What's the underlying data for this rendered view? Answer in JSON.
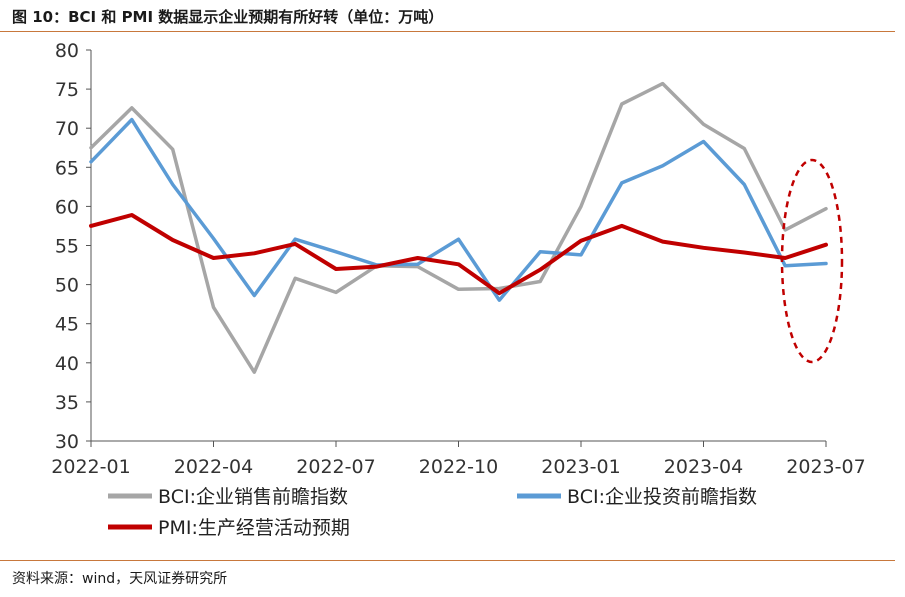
{
  "title": "图 10：BCI 和 PMI 数据显示企业预期有所好转（单位：万吨）",
  "source": "资料来源：wind，天风证券研究所",
  "chart_data": {
    "type": "line",
    "x": [
      "2022-01",
      "2022-02",
      "2022-03",
      "2022-04",
      "2022-05",
      "2022-06",
      "2022-07",
      "2022-08",
      "2022-09",
      "2022-10",
      "2022-11",
      "2022-12",
      "2023-01",
      "2023-02",
      "2023-03",
      "2023-04",
      "2023-05",
      "2023-06",
      "2023-07"
    ],
    "x_tick_labels": [
      "2022-01",
      "2022-04",
      "2022-07",
      "2022-10",
      "2023-01",
      "2023-04",
      "2023-07"
    ],
    "y_ticks": [
      30,
      35,
      40,
      45,
      50,
      55,
      60,
      65,
      70,
      75,
      80
    ],
    "ylim": [
      30,
      80
    ],
    "grid": false,
    "legend_placement": "bottom",
    "series": [
      {
        "name": "BCI:企业销售前瞻指数",
        "color": "#a6a6a6",
        "values": [
          67.5,
          72.6,
          67.3,
          47.1,
          38.8,
          50.8,
          49.0,
          52.4,
          52.3,
          49.4,
          49.5,
          50.4,
          60.0,
          73.1,
          75.7,
          70.5,
          67.4,
          57.0,
          59.7
        ]
      },
      {
        "name": "BCI:企业投资前瞻指数",
        "color": "#5b9bd5",
        "values": [
          65.7,
          71.1,
          62.8,
          55.9,
          48.6,
          55.8,
          54.2,
          52.5,
          52.6,
          55.8,
          48.0,
          54.2,
          53.8,
          63.0,
          65.2,
          68.3,
          62.8,
          52.4,
          52.7
        ]
      },
      {
        "name": "PMI:生产经营活动预期",
        "color": "#c00000",
        "values": [
          57.5,
          58.9,
          55.7,
          53.4,
          54.0,
          55.2,
          52.0,
          52.3,
          53.4,
          52.6,
          48.9,
          51.9,
          55.6,
          57.5,
          55.5,
          54.7,
          54.1,
          53.4,
          55.1
        ]
      }
    ]
  }
}
